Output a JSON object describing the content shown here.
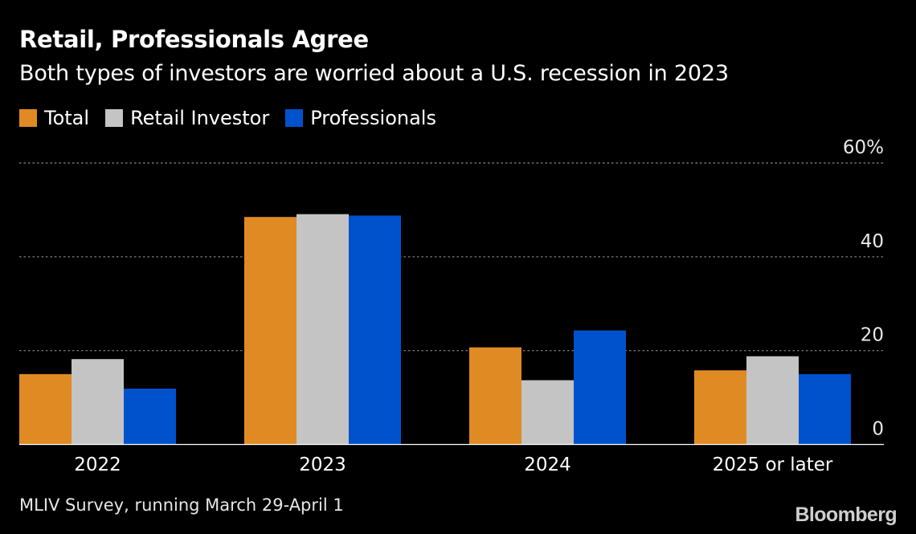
{
  "header": {
    "title": "Retail, Professionals Agree",
    "subtitle": "Both types of investors are worried about a U.S. recession in 2023"
  },
  "legend": [
    {
      "label": "Total",
      "color": "#E08A24"
    },
    {
      "label": "Retail Investor",
      "color": "#C4C4C4"
    },
    {
      "label": "Professionals",
      "color": "#0052CC"
    }
  ],
  "footer": {
    "source": "MLIV Survey, running March 29-April 1",
    "logo": "Bloomberg"
  },
  "chart_data": {
    "type": "bar",
    "categories": [
      "2022",
      "2023",
      "2024",
      "2025 or later"
    ],
    "series": [
      {
        "name": "Total",
        "color": "#E08A24",
        "values": [
          15,
          48.5,
          20.7,
          15.8
        ]
      },
      {
        "name": "Retail Investor",
        "color": "#C4C4C4",
        "values": [
          18.2,
          49.1,
          13.7,
          18.8
        ]
      },
      {
        "name": "Professionals",
        "color": "#0052CC",
        "values": [
          11.9,
          48.8,
          24.3,
          15
        ]
      }
    ],
    "yticks": [
      {
        "value": 0,
        "label": "0"
      },
      {
        "value": 20,
        "label": "20"
      },
      {
        "value": 40,
        "label": "40"
      },
      {
        "value": 60,
        "label": "60%"
      }
    ],
    "ylim": [
      0,
      60
    ],
    "grid": true,
    "legend_position": "top-left"
  }
}
